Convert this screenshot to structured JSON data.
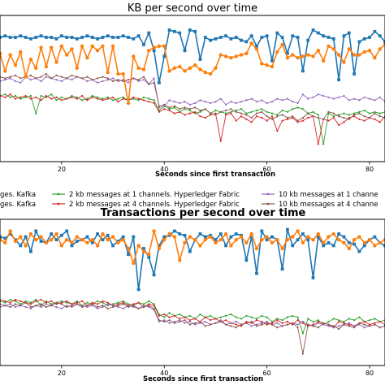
{
  "colors": {
    "s2k1k": "#1f77b4",
    "s2k4k": "#ff7f0e",
    "s2k1h": "#2ca02c",
    "s2k4h": "#d62728",
    "s10k1h": "#9467bd",
    "s10k4h": "#8c564b"
  },
  "legend": {
    "items": [
      "ges. Kafka",
      "2 kb messages at 1 channels. Hyperledger Fabric",
      "10 kb messages at 1 channe",
      "ges. Kafka",
      "2 kb messages at 4 channels. Hyperledger Fabric",
      "10 kb messages at 4 channe"
    ]
  },
  "chart_data": [
    {
      "type": "line",
      "title": "KB per second over time",
      "xlabel": "Seconds since first transaction",
      "ylabel": "",
      "xlim": [
        8,
        83
      ],
      "ylim": [
        0,
        100
      ],
      "xticks": [
        20,
        40,
        60,
        80
      ],
      "grid": false,
      "x": [
        8,
        9,
        10,
        11,
        12,
        13,
        14,
        15,
        16,
        17,
        18,
        19,
        20,
        21,
        22,
        23,
        24,
        25,
        26,
        27,
        28,
        29,
        30,
        31,
        32,
        33,
        34,
        35,
        36,
        37,
        38,
        39,
        40,
        41,
        42,
        43,
        44,
        45,
        46,
        47,
        48,
        49,
        50,
        51,
        52,
        53,
        54,
        55,
        56,
        57,
        58,
        59,
        60,
        61,
        62,
        63,
        64,
        65,
        66,
        67,
        68,
        69,
        70,
        71,
        72,
        73,
        74,
        75,
        76,
        77,
        78,
        79,
        80,
        81,
        82,
        83
      ],
      "series": [
        {
          "key": "s2k1k",
          "marker": "square",
          "values": [
            85,
            86,
            85,
            85,
            86,
            85,
            84,
            85,
            86,
            85,
            85,
            84,
            86,
            85,
            85,
            84,
            85,
            86,
            85,
            84,
            85,
            86,
            85,
            85,
            86,
            85,
            84,
            86,
            80,
            88,
            76,
            54,
            72,
            90,
            89,
            88,
            76,
            90,
            89,
            70,
            85,
            83,
            84,
            85,
            86,
            84,
            85,
            83,
            82,
            86,
            79,
            85,
            86,
            69,
            88,
            85,
            74,
            86,
            85,
            62,
            83,
            90,
            88,
            86,
            85,
            84,
            56,
            86,
            88,
            60,
            82,
            84,
            85,
            89,
            86,
            82
          ]
        },
        {
          "key": "s2k4k",
          "marker": "circle",
          "values": [
            74,
            62,
            73,
            66,
            75,
            58,
            70,
            64,
            78,
            65,
            78,
            68,
            79,
            73,
            77,
            64,
            79,
            71,
            79,
            76,
            79,
            61,
            79,
            60,
            60,
            40,
            72,
            64,
            63,
            76,
            78,
            79,
            79,
            62,
            64,
            65,
            62,
            64,
            66,
            63,
            61,
            60,
            64,
            73,
            72,
            71,
            72,
            73,
            74,
            81,
            77,
            67,
            66,
            65,
            75,
            80,
            71,
            73,
            71,
            72,
            73,
            72,
            76,
            69,
            79,
            77,
            73,
            68,
            77,
            73,
            73,
            75,
            76,
            71,
            77,
            80
          ]
        },
        {
          "key": "s2k1h",
          "marker": "dot",
          "values": [
            45,
            46,
            44,
            45,
            43,
            44,
            45,
            33,
            45,
            44,
            46,
            42,
            44,
            43,
            45,
            44,
            42,
            43,
            45,
            44,
            43,
            44,
            42,
            43,
            44,
            42,
            43,
            42,
            44,
            43,
            42,
            35,
            38,
            36,
            37,
            34,
            36,
            35,
            33,
            34,
            36,
            33,
            35,
            34,
            33,
            34,
            35,
            36,
            33,
            34,
            35,
            36,
            34,
            33,
            32,
            35,
            34,
            36,
            37,
            36,
            33,
            34,
            32,
            12,
            33,
            31,
            32,
            33,
            32,
            33,
            34,
            35,
            33,
            34,
            33,
            34
          ]
        },
        {
          "key": "s2k4h",
          "marker": "dot",
          "values": [
            45,
            44,
            46,
            43,
            44,
            45,
            43,
            44,
            42,
            45,
            43,
            44,
            42,
            43,
            44,
            43,
            45,
            42,
            44,
            43,
            42,
            43,
            44,
            41,
            43,
            42,
            44,
            43,
            42,
            41,
            40,
            34,
            36,
            35,
            33,
            34,
            32,
            33,
            34,
            31,
            30,
            32,
            33,
            14,
            32,
            33,
            28,
            31,
            29,
            27,
            31,
            30,
            28,
            31,
            21,
            28,
            29,
            30,
            27,
            28,
            30,
            31,
            12,
            29,
            28,
            30,
            25,
            27,
            30,
            31,
            29,
            28,
            30,
            29,
            27,
            31
          ]
        },
        {
          "key": "s10k1h",
          "marker": "dot",
          "values": [
            55,
            56,
            57,
            55,
            54,
            58,
            56,
            57,
            55,
            58,
            57,
            56,
            55,
            57,
            56,
            58,
            57,
            55,
            56,
            54,
            55,
            56,
            57,
            55,
            56,
            54,
            57,
            55,
            56,
            53,
            57,
            37,
            38,
            42,
            41,
            40,
            41,
            39,
            40,
            42,
            41,
            40,
            41,
            43,
            39,
            41,
            40,
            41,
            42,
            43,
            41,
            42,
            40,
            41,
            43,
            42,
            43,
            41,
            40,
            46,
            43,
            44,
            46,
            45,
            44,
            43,
            44,
            45,
            42,
            43,
            42,
            44,
            43,
            42,
            44,
            41
          ]
        },
        {
          "key": "s10k4h",
          "marker": "dot",
          "values": [
            58,
            57,
            58,
            59,
            57,
            58,
            59,
            57,
            58,
            60,
            57,
            59,
            58,
            57,
            59,
            58,
            57,
            58,
            56,
            57,
            58,
            57,
            55,
            56,
            55,
            56,
            57,
            56,
            58,
            53,
            54,
            38,
            39,
            37,
            38,
            36,
            37,
            36,
            37,
            35,
            36,
            33,
            32,
            34,
            35,
            36,
            34,
            33,
            32,
            30,
            33,
            34,
            31,
            29,
            31,
            32,
            30,
            31,
            28,
            30,
            33,
            31,
            30,
            29,
            34,
            33,
            31,
            30,
            29,
            32,
            33,
            31,
            30,
            33,
            31,
            30
          ]
        }
      ]
    },
    {
      "type": "line",
      "title": "Transactions per second over time",
      "xlabel": "Seconds since first transaction",
      "ylabel": "",
      "xlim": [
        8,
        83
      ],
      "ylim": [
        0,
        100
      ],
      "xticks": [
        20,
        40,
        60,
        80
      ],
      "grid": false,
      "x": [
        8,
        9,
        10,
        11,
        12,
        13,
        14,
        15,
        16,
        17,
        18,
        19,
        20,
        21,
        22,
        23,
        24,
        25,
        26,
        27,
        28,
        29,
        30,
        31,
        32,
        33,
        34,
        35,
        36,
        37,
        38,
        39,
        40,
        41,
        42,
        43,
        44,
        45,
        46,
        47,
        48,
        49,
        50,
        51,
        52,
        53,
        54,
        55,
        56,
        57,
        58,
        59,
        60,
        61,
        62,
        63,
        64,
        65,
        66,
        67,
        68,
        69,
        70,
        71,
        72,
        73,
        74,
        75,
        76,
        77,
        78,
        79,
        80,
        81,
        82,
        83
      ],
      "series": [
        {
          "key": "s2k1k",
          "marker": "square",
          "values": [
            88,
            87,
            90,
            86,
            82,
            88,
            78,
            92,
            85,
            84,
            90,
            86,
            89,
            92,
            82,
            85,
            86,
            88,
            84,
            90,
            86,
            89,
            82,
            85,
            88,
            76,
            88,
            52,
            80,
            74,
            62,
            82,
            88,
            89,
            92,
            90,
            89,
            78,
            86,
            90,
            88,
            89,
            86,
            90,
            82,
            88,
            90,
            89,
            72,
            88,
            63,
            92,
            86,
            88,
            86,
            66,
            93,
            82,
            86,
            90,
            86,
            60,
            88,
            82,
            84,
            82,
            90,
            88,
            84,
            83,
            78,
            82,
            86,
            88,
            84,
            82
          ]
        },
        {
          "key": "s2k4k",
          "marker": "circle",
          "values": [
            86,
            84,
            92,
            85,
            88,
            82,
            90,
            86,
            88,
            84,
            86,
            90,
            82,
            86,
            84,
            88,
            86,
            84,
            86,
            82,
            90,
            86,
            88,
            84,
            86,
            80,
            70,
            82,
            78,
            76,
            92,
            80,
            86,
            90,
            88,
            72,
            84,
            88,
            86,
            82,
            86,
            88,
            84,
            86,
            90,
            82,
            86,
            88,
            84,
            90,
            80,
            86,
            88,
            84,
            86,
            80,
            86,
            88,
            92,
            84,
            88,
            86,
            90,
            84,
            88,
            90,
            86,
            84,
            80,
            86,
            88,
            84,
            86,
            82,
            84,
            86
          ]
        },
        {
          "key": "s2k1h",
          "marker": "dot",
          "values": [
            44,
            43,
            45,
            44,
            42,
            44,
            43,
            45,
            41,
            44,
            42,
            43,
            44,
            43,
            42,
            44,
            41,
            43,
            42,
            44,
            43,
            41,
            42,
            43,
            44,
            42,
            41,
            43,
            42,
            44,
            42,
            35,
            33,
            36,
            34,
            35,
            33,
            34,
            32,
            35,
            33,
            34,
            32,
            33,
            34,
            35,
            33,
            32,
            34,
            33,
            32,
            34,
            33,
            30,
            32,
            31,
            33,
            34,
            33,
            22,
            32,
            30,
            31,
            28,
            30,
            32,
            31,
            30,
            32,
            31,
            33,
            30,
            31,
            32,
            30,
            31
          ]
        },
        {
          "key": "s2k4h",
          "marker": "dot",
          "values": [
            45,
            44,
            43,
            45,
            44,
            43,
            42,
            44,
            45,
            43,
            44,
            42,
            43,
            44,
            42,
            43,
            44,
            41,
            43,
            42,
            44,
            43,
            41,
            42,
            43,
            41,
            42,
            43,
            40,
            42,
            41,
            34,
            35,
            33,
            34,
            32,
            33,
            31,
            32,
            30,
            33,
            31,
            32,
            30,
            31,
            29,
            28,
            27,
            30,
            29,
            31,
            30,
            28,
            29,
            31,
            29,
            30,
            28,
            31,
            29,
            27,
            28,
            30,
            29,
            28,
            26,
            30,
            29,
            28,
            27,
            29,
            30,
            28,
            29,
            30,
            28
          ]
        },
        {
          "key": "s10k1h",
          "marker": "dot",
          "values": [
            40,
            41,
            42,
            40,
            41,
            40,
            39,
            41,
            40,
            42,
            41,
            40,
            39,
            41,
            40,
            42,
            41,
            40,
            41,
            39,
            40,
            42,
            41,
            40,
            39,
            41,
            40,
            39,
            41,
            40,
            38,
            30,
            31,
            29,
            30,
            31,
            29,
            30,
            28,
            29,
            30,
            28,
            29,
            31,
            28,
            29,
            30,
            28,
            29,
            27,
            28,
            29,
            30,
            28,
            29,
            27,
            28,
            29,
            28,
            30,
            28,
            27,
            29,
            28,
            27,
            26,
            27,
            28,
            29,
            27,
            28,
            26,
            27,
            28,
            26,
            27
          ]
        },
        {
          "key": "s10k4h",
          "marker": "dot",
          "values": [
            42,
            41,
            40,
            42,
            41,
            43,
            40,
            41,
            42,
            40,
            41,
            43,
            42,
            40,
            41,
            42,
            40,
            41,
            42,
            40,
            41,
            39,
            40,
            41,
            42,
            40,
            41,
            39,
            40,
            41,
            39,
            31,
            30,
            31,
            29,
            30,
            31,
            28,
            29,
            30,
            27,
            28,
            29,
            30,
            28,
            27,
            26,
            28,
            29,
            30,
            27,
            28,
            29,
            28,
            26,
            27,
            28,
            29,
            26,
            8,
            28,
            27,
            26,
            29,
            28,
            27,
            25,
            28,
            27,
            26,
            29,
            28,
            27,
            28,
            26,
            27
          ]
        }
      ]
    }
  ]
}
